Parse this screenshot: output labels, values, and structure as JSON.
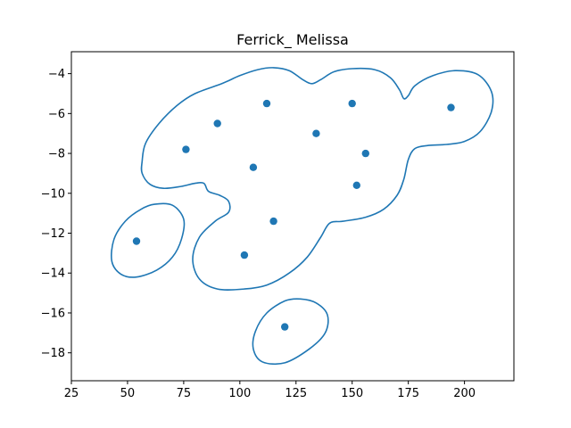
{
  "chart_data": {
    "type": "scatter",
    "title": "Ferrick_ Melissa",
    "xlabel": "",
    "ylabel": "",
    "xlim": [
      25,
      222
    ],
    "ylim": [
      -19.4,
      -2.9
    ],
    "xticks": [
      25,
      50,
      75,
      100,
      125,
      150,
      175,
      200
    ],
    "yticks": [
      -18,
      -16,
      -14,
      -12,
      -10,
      -8,
      -6,
      -4
    ],
    "xtick_labels": [
      "25",
      "50",
      "75",
      "100",
      "125",
      "150",
      "175",
      "200"
    ],
    "ytick_labels": [
      "−18",
      "−16",
      "−14",
      "−12",
      "−10",
      "−8",
      "−6",
      "−4"
    ],
    "grid": false,
    "point_color": "#1f77b4",
    "contour_color": "#1f77b4",
    "points": [
      {
        "x": 54,
        "y": -12.4
      },
      {
        "x": 76,
        "y": -7.8
      },
      {
        "x": 90,
        "y": -6.5
      },
      {
        "x": 102,
        "y": -13.1
      },
      {
        "x": 106,
        "y": -8.7
      },
      {
        "x": 112,
        "y": -5.5
      },
      {
        "x": 115,
        "y": -11.4
      },
      {
        "x": 120,
        "y": -16.7
      },
      {
        "x": 134,
        "y": -7.0
      },
      {
        "x": 150,
        "y": -5.5
      },
      {
        "x": 152,
        "y": -9.6
      },
      {
        "x": 156,
        "y": -8.0
      },
      {
        "x": 194,
        "y": -5.7
      }
    ],
    "contours": [
      [
        [
          56.5,
          -8.4
        ],
        [
          58,
          -7.5
        ],
        [
          64,
          -6.5
        ],
        [
          72,
          -5.6
        ],
        [
          80,
          -5.0
        ],
        [
          92,
          -4.5
        ],
        [
          100,
          -4.1
        ],
        [
          108,
          -3.8
        ],
        [
          115,
          -3.7
        ],
        [
          122,
          -3.85
        ],
        [
          128,
          -4.3
        ],
        [
          132,
          -4.5
        ],
        [
          136,
          -4.3
        ],
        [
          142,
          -3.9
        ],
        [
          150,
          -3.75
        ],
        [
          160,
          -3.8
        ],
        [
          167,
          -4.2
        ],
        [
          171,
          -4.8
        ],
        [
          173,
          -5.25
        ],
        [
          175,
          -5.1
        ],
        [
          178,
          -4.6
        ],
        [
          186,
          -4.1
        ],
        [
          196,
          -3.85
        ],
        [
          206,
          -4.05
        ],
        [
          212,
          -4.9
        ],
        [
          212,
          -5.9
        ],
        [
          207,
          -6.9
        ],
        [
          200,
          -7.4
        ],
        [
          192,
          -7.55
        ],
        [
          184,
          -7.6
        ],
        [
          178,
          -7.75
        ],
        [
          175,
          -8.3
        ],
        [
          173,
          -9.3
        ],
        [
          170,
          -10.1
        ],
        [
          164,
          -10.8
        ],
        [
          156,
          -11.2
        ],
        [
          146,
          -11.4
        ],
        [
          140,
          -11.5
        ],
        [
          136,
          -12.2
        ],
        [
          130,
          -13.2
        ],
        [
          122,
          -14.0
        ],
        [
          112,
          -14.6
        ],
        [
          102,
          -14.8
        ],
        [
          90,
          -14.8
        ],
        [
          82,
          -14.3
        ],
        [
          79,
          -13.3
        ],
        [
          82,
          -12.2
        ],
        [
          89,
          -11.4
        ],
        [
          95,
          -10.95
        ],
        [
          95,
          -10.4
        ],
        [
          91,
          -10.1
        ],
        [
          86,
          -9.9
        ],
        [
          84,
          -9.5
        ],
        [
          80,
          -9.5
        ],
        [
          74,
          -9.65
        ],
        [
          66,
          -9.75
        ],
        [
          60,
          -9.55
        ],
        [
          56.5,
          -9.0
        ],
        [
          56.5,
          -8.4
        ]
      ],
      [
        [
          62,
          -10.55
        ],
        [
          70,
          -10.6
        ],
        [
          75,
          -11.3
        ],
        [
          74,
          -12.3
        ],
        [
          70,
          -13.2
        ],
        [
          63,
          -13.85
        ],
        [
          54,
          -14.2
        ],
        [
          47,
          -14.05
        ],
        [
          43,
          -13.4
        ],
        [
          44,
          -12.3
        ],
        [
          49,
          -11.4
        ],
        [
          56,
          -10.8
        ],
        [
          62,
          -10.55
        ]
      ],
      [
        [
          127,
          -15.3
        ],
        [
          134,
          -15.5
        ],
        [
          139,
          -16.1
        ],
        [
          138,
          -17.0
        ],
        [
          131,
          -17.8
        ],
        [
          120,
          -18.5
        ],
        [
          110,
          -18.45
        ],
        [
          106,
          -17.8
        ],
        [
          107,
          -16.9
        ],
        [
          112,
          -16.0
        ],
        [
          120,
          -15.4
        ],
        [
          127,
          -15.3
        ]
      ]
    ]
  }
}
